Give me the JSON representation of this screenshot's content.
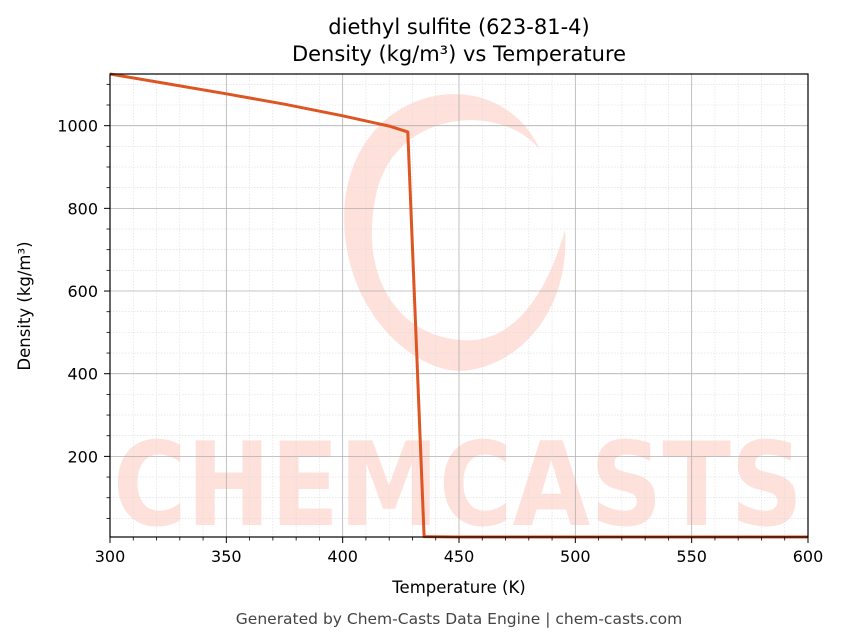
{
  "colors": {
    "series": "#dd5522",
    "watermark": "#fde1da",
    "grid": "#b0b0b0",
    "footer": "#444444"
  },
  "watermark_text": "CHEMCASTS",
  "footer_text": "Generated by Chem-Casts Data Engine | chem-casts.com",
  "chart_data": {
    "type": "line",
    "title": "diethyl sulfite (623-81-4)",
    "subtitle": "Density (kg/m³) vs Temperature",
    "xlabel": "Temperature (K)",
    "ylabel": "Density (kg/m³)",
    "xlim": [
      300,
      600
    ],
    "ylim": [
      5,
      1125
    ],
    "x_ticks": [
      300,
      350,
      400,
      450,
      500,
      550,
      600
    ],
    "y_ticks": [
      200,
      400,
      600,
      800,
      1000
    ],
    "grid": true,
    "series": [
      {
        "color": "#dd5522",
        "x": [
          300,
          325,
          350,
          375,
          400,
          420,
          428,
          435,
          450,
          500,
          550,
          600
        ],
        "y": [
          1125,
          1101,
          1077,
          1052,
          1024,
          999,
          985,
          6,
          5,
          5,
          5,
          5
        ]
      }
    ]
  }
}
